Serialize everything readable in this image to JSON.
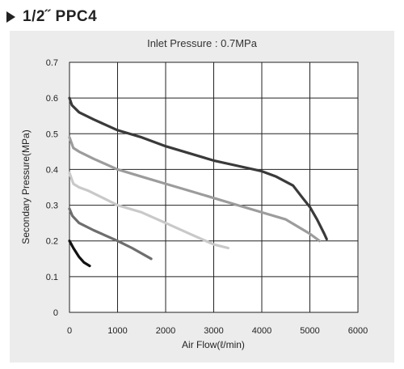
{
  "header": {
    "title": "1/2˝ PPC4"
  },
  "chart_data": {
    "type": "line",
    "title": "Inlet Pressure : 0.7MPa",
    "xlabel": "Air Flow(ℓ/min)",
    "ylabel": "Secondary Pressure(MPa)",
    "xlim": [
      0,
      6000
    ],
    "ylim": [
      0,
      0.7
    ],
    "xticks": [
      0,
      1000,
      2000,
      3000,
      4000,
      5000,
      6000
    ],
    "yticks": [
      0,
      0.1,
      0.2,
      0.3,
      0.4,
      0.5,
      0.6,
      0.7
    ],
    "grid": true,
    "series": [
      {
        "color": "#3a3a3a",
        "points": [
          [
            0,
            0.6
          ],
          [
            50,
            0.58
          ],
          [
            200,
            0.56
          ],
          [
            500,
            0.54
          ],
          [
            1000,
            0.51
          ],
          [
            1500,
            0.49
          ],
          [
            2000,
            0.465
          ],
          [
            3000,
            0.425
          ],
          [
            3500,
            0.41
          ],
          [
            4000,
            0.395
          ],
          [
            4300,
            0.38
          ],
          [
            4650,
            0.355
          ],
          [
            4850,
            0.32
          ],
          [
            5000,
            0.295
          ],
          [
            5150,
            0.26
          ],
          [
            5300,
            0.22
          ],
          [
            5350,
            0.205
          ]
        ]
      },
      {
        "color": "#9c9c9c",
        "points": [
          [
            0,
            0.49
          ],
          [
            80,
            0.46
          ],
          [
            200,
            0.45
          ],
          [
            500,
            0.43
          ],
          [
            1000,
            0.4
          ],
          [
            1500,
            0.38
          ],
          [
            2000,
            0.36
          ],
          [
            2500,
            0.34
          ],
          [
            3000,
            0.32
          ],
          [
            3500,
            0.3
          ],
          [
            4000,
            0.28
          ],
          [
            4500,
            0.26
          ],
          [
            5000,
            0.22
          ],
          [
            5200,
            0.2
          ]
        ]
      },
      {
        "color": "#c9c9c9",
        "points": [
          [
            0,
            0.39
          ],
          [
            80,
            0.36
          ],
          [
            200,
            0.35
          ],
          [
            400,
            0.34
          ],
          [
            700,
            0.32
          ],
          [
            1000,
            0.3
          ],
          [
            1500,
            0.28
          ],
          [
            2000,
            0.25
          ],
          [
            2500,
            0.22
          ],
          [
            3000,
            0.19
          ],
          [
            3300,
            0.18
          ]
        ]
      },
      {
        "color": "#6e6e6e",
        "points": [
          [
            0,
            0.29
          ],
          [
            60,
            0.27
          ],
          [
            200,
            0.25
          ],
          [
            500,
            0.23
          ],
          [
            1000,
            0.2
          ],
          [
            1300,
            0.18
          ],
          [
            1700,
            0.15
          ]
        ]
      },
      {
        "color": "#111111",
        "points": [
          [
            0,
            0.2
          ],
          [
            80,
            0.18
          ],
          [
            200,
            0.155
          ],
          [
            300,
            0.14
          ],
          [
            420,
            0.13
          ]
        ]
      }
    ]
  }
}
